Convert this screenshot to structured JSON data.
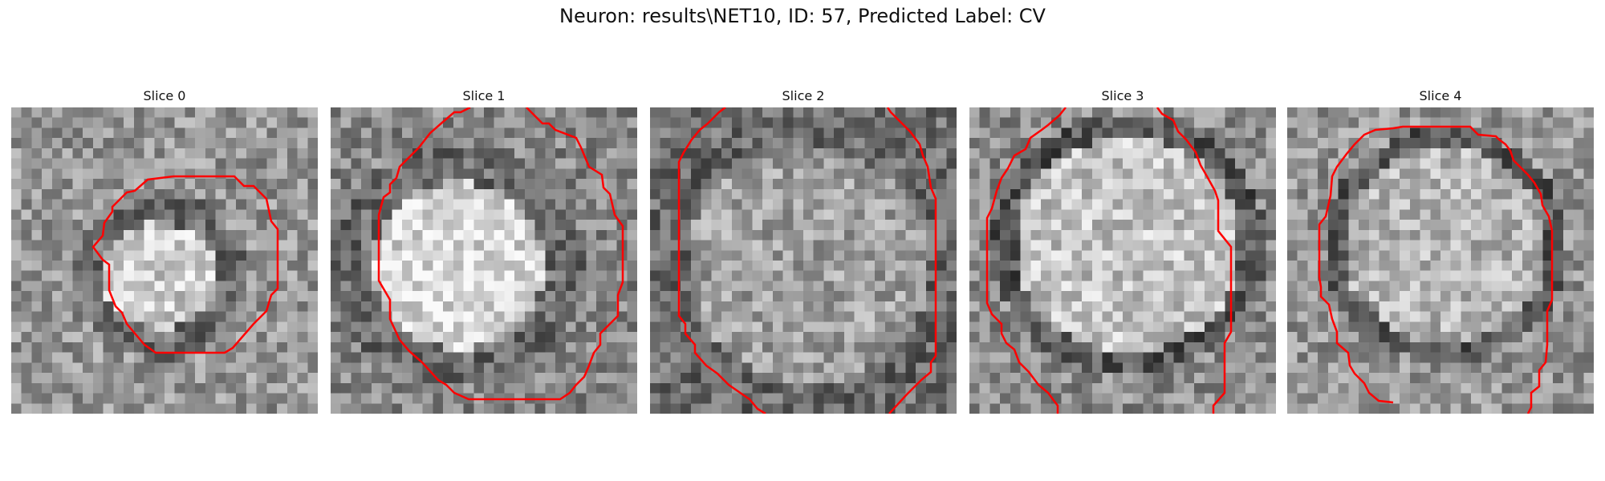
{
  "figure": {
    "title": "Neuron: results\\NET10, ID: 57, Predicted Label: CV"
  },
  "panels": [
    {
      "title": "Slice 0"
    },
    {
      "title": "Slice 1"
    },
    {
      "title": "Slice 2"
    },
    {
      "title": "Slice 3"
    },
    {
      "title": "Slice 4"
    }
  ],
  "colors": {
    "contour": "#ff0000",
    "background": "#ffffff"
  }
}
